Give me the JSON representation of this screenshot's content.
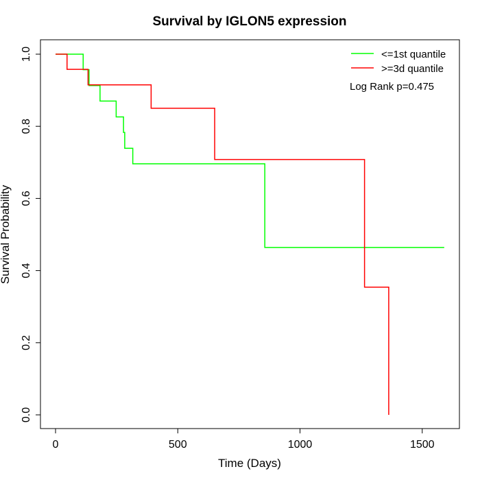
{
  "chart_data": {
    "type": "line",
    "title": "Survival by IGLON5 expression",
    "xlabel": "Time (Days)",
    "ylabel": "Survival Probability",
    "xlim": [
      0,
      1600
    ],
    "ylim": [
      0,
      1
    ],
    "x_ticks": [
      0,
      500,
      1000,
      1500
    ],
    "x_tick_labels": [
      "0",
      "500",
      "1000",
      "1500"
    ],
    "y_ticks": [
      0,
      0.2,
      0.4,
      0.6,
      0.8,
      1
    ],
    "y_tick_labels": [
      "0.0",
      "0.2",
      "0.4",
      "0.6",
      "0.8",
      "1.0"
    ],
    "grid": false,
    "legend_position": "top-right",
    "annotation": "Log Rank p=0.475",
    "series": [
      {
        "name": "<=1st quantile",
        "color": "#00ff00",
        "step_x": [
          0,
          113,
          137,
          182,
          248,
          278,
          283,
          316,
          856,
          1590
        ],
        "step_y": [
          1.0,
          0.957,
          0.913,
          0.87,
          0.826,
          0.783,
          0.739,
          0.696,
          0.464,
          0.464
        ]
      },
      {
        "name": ">=3d quantile",
        "color": "#ff0000",
        "step_x": [
          0,
          47,
          133,
          391,
          651,
          1264,
          1363
        ],
        "step_y": [
          1.0,
          0.958,
          0.915,
          0.85,
          0.708,
          0.354,
          0.0
        ]
      }
    ]
  }
}
